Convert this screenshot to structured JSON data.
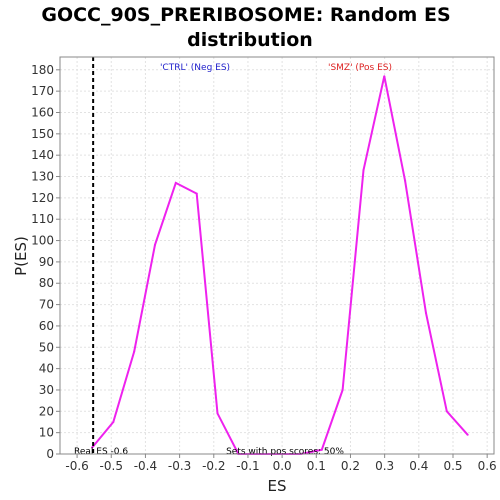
{
  "chart_data": {
    "type": "line",
    "title_lines": [
      "GOCC_90S_PRERIBOSOME: Random ES",
      "distribution"
    ],
    "xlabel": "ES",
    "ylabel": "P(ES)",
    "xlim": [
      -0.65,
      0.62
    ],
    "ylim": [
      0,
      186
    ],
    "x_ticks": [
      "-0.6",
      "-0.5",
      "-0.4",
      "-0.3",
      "-0.2",
      "-0.1",
      "0.0",
      "0.1",
      "0.2",
      "0.3",
      "0.4",
      "0.5",
      "0.6"
    ],
    "y_ticks": [
      "0",
      "10",
      "20",
      "30",
      "40",
      "50",
      "60",
      "70",
      "80",
      "90",
      "100",
      "110",
      "120",
      "130",
      "140",
      "150",
      "160",
      "170",
      "180"
    ],
    "grid": true,
    "series": [
      {
        "color": "#ee22ee",
        "x": [
          -0.556,
          -0.494,
          -0.433,
          -0.372,
          -0.311,
          -0.25,
          -0.189,
          -0.128,
          -0.067,
          -0.006,
          0.055,
          0.116,
          0.177,
          0.238,
          0.299,
          0.36,
          0.421,
          0.482,
          0.543
        ],
        "values": [
          3,
          15,
          48,
          98,
          127,
          122,
          19,
          0,
          0,
          0,
          0,
          2,
          30,
          133,
          177,
          128,
          66,
          20,
          9
        ]
      }
    ],
    "real_es": {
      "x": -0.553,
      "label": "Real ES -0.6"
    },
    "annotations": {
      "neg_label": "'CTRL' (Neg ES)",
      "pos_label": "'SMZ' (Pos ES)",
      "neg_color": "#2222cc",
      "pos_color": "#dd2222",
      "pos_scores": "Sets with pos scores: 50%"
    },
    "plot_background": "#ffffff",
    "frame_color": "#888888",
    "grid_color": "#e2e2e2"
  }
}
